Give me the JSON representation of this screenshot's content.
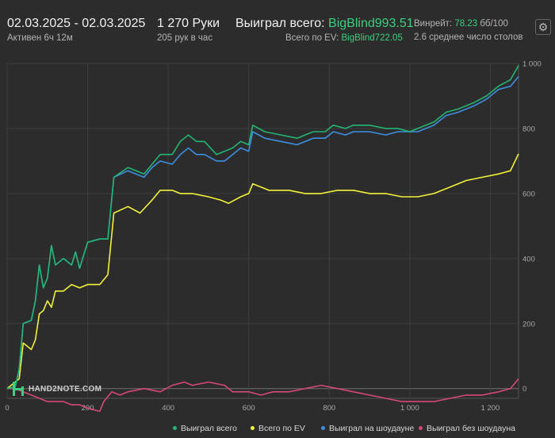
{
  "header": {
    "date_range": "02.03.2025 - 02.03.2025",
    "active_time": "Активен 6ч 12м",
    "hands": "1 270 Руки",
    "hands_per_hour": "205 рук в час",
    "won_total_label": "Выиграл всего:",
    "won_total_value": "BigBlind993.51",
    "ev_label": "Всего по EV:",
    "ev_value": "BigBlind722.05",
    "winrate_label": "Винрейт:",
    "winrate_value": "78.23",
    "winrate_unit": "бб/100",
    "tables": "2.6 среднее число столов",
    "gear_icon": "gear-icon"
  },
  "logo": {
    "text": "HAND2NOTE.COM"
  },
  "colors": {
    "background": "#2c2c2c",
    "accent_green": "#3ccf7f",
    "won_total": "#22b573",
    "ev": "#f2f23a",
    "showdown": "#3d8fe0",
    "non_showdown": "#d6477a",
    "zero_line": "#707070"
  },
  "chart_data": {
    "type": "line",
    "xlim": [
      0,
      1270
    ],
    "ylim": [
      -30,
      1000
    ],
    "x_ticks": [
      0,
      200,
      400,
      600,
      800,
      1000,
      1200
    ],
    "x_tick_labels": [
      "0",
      "200",
      "400",
      "600",
      "800",
      "1 000",
      "1 200"
    ],
    "y_ticks": [
      0,
      200,
      400,
      600,
      800,
      1000
    ],
    "y_tick_labels": [
      "0",
      "200",
      "400",
      "600",
      "800",
      "1 000"
    ],
    "grid": true,
    "legend_position": "bottom-right",
    "series": [
      {
        "name": "Выиграл всего",
        "color": "#22b573",
        "points": [
          [
            0,
            0
          ],
          [
            20,
            5
          ],
          [
            30,
            60
          ],
          [
            40,
            200
          ],
          [
            60,
            210
          ],
          [
            70,
            270
          ],
          [
            80,
            380
          ],
          [
            90,
            310
          ],
          [
            100,
            340
          ],
          [
            110,
            440
          ],
          [
            120,
            380
          ],
          [
            140,
            400
          ],
          [
            160,
            380
          ],
          [
            170,
            420
          ],
          [
            180,
            370
          ],
          [
            200,
            450
          ],
          [
            230,
            460
          ],
          [
            250,
            460
          ],
          [
            265,
            650
          ],
          [
            300,
            680
          ],
          [
            340,
            660
          ],
          [
            360,
            690
          ],
          [
            380,
            720
          ],
          [
            410,
            720
          ],
          [
            430,
            760
          ],
          [
            450,
            780
          ],
          [
            470,
            760
          ],
          [
            490,
            760
          ],
          [
            520,
            720
          ],
          [
            540,
            730
          ],
          [
            560,
            740
          ],
          [
            580,
            760
          ],
          [
            600,
            750
          ],
          [
            610,
            810
          ],
          [
            640,
            790
          ],
          [
            680,
            780
          ],
          [
            720,
            770
          ],
          [
            760,
            790
          ],
          [
            790,
            790
          ],
          [
            810,
            810
          ],
          [
            840,
            800
          ],
          [
            860,
            810
          ],
          [
            900,
            810
          ],
          [
            940,
            800
          ],
          [
            970,
            800
          ],
          [
            1000,
            790
          ],
          [
            1020,
            800
          ],
          [
            1060,
            820
          ],
          [
            1090,
            850
          ],
          [
            1120,
            860
          ],
          [
            1160,
            880
          ],
          [
            1190,
            900
          ],
          [
            1220,
            930
          ],
          [
            1250,
            950
          ],
          [
            1270,
            993.51
          ]
        ]
      },
      {
        "name": "Всего по EV",
        "color": "#f2f23a",
        "points": [
          [
            0,
            0
          ],
          [
            30,
            30
          ],
          [
            40,
            140
          ],
          [
            60,
            120
          ],
          [
            70,
            150
          ],
          [
            80,
            230
          ],
          [
            90,
            240
          ],
          [
            100,
            270
          ],
          [
            110,
            250
          ],
          [
            120,
            300
          ],
          [
            140,
            300
          ],
          [
            160,
            320
          ],
          [
            180,
            310
          ],
          [
            200,
            320
          ],
          [
            230,
            320
          ],
          [
            250,
            350
          ],
          [
            265,
            540
          ],
          [
            300,
            560
          ],
          [
            330,
            540
          ],
          [
            360,
            580
          ],
          [
            380,
            610
          ],
          [
            410,
            610
          ],
          [
            430,
            600
          ],
          [
            460,
            600
          ],
          [
            500,
            590
          ],
          [
            530,
            580
          ],
          [
            550,
            570
          ],
          [
            580,
            590
          ],
          [
            600,
            600
          ],
          [
            610,
            630
          ],
          [
            650,
            610
          ],
          [
            700,
            610
          ],
          [
            740,
            600
          ],
          [
            780,
            600
          ],
          [
            820,
            610
          ],
          [
            860,
            610
          ],
          [
            900,
            600
          ],
          [
            940,
            600
          ],
          [
            980,
            590
          ],
          [
            1020,
            590
          ],
          [
            1060,
            600
          ],
          [
            1100,
            620
          ],
          [
            1140,
            640
          ],
          [
            1180,
            650
          ],
          [
            1220,
            660
          ],
          [
            1250,
            670
          ],
          [
            1270,
            722.05
          ]
        ]
      },
      {
        "name": "Выиграл на шоудауне",
        "color": "#3d8fe0",
        "points": [
          [
            0,
            0
          ],
          [
            20,
            5
          ],
          [
            30,
            60
          ],
          [
            40,
            200
          ],
          [
            60,
            210
          ],
          [
            70,
            270
          ],
          [
            80,
            380
          ],
          [
            90,
            310
          ],
          [
            100,
            340
          ],
          [
            110,
            440
          ],
          [
            120,
            380
          ],
          [
            140,
            400
          ],
          [
            160,
            380
          ],
          [
            170,
            420
          ],
          [
            180,
            370
          ],
          [
            200,
            450
          ],
          [
            230,
            460
          ],
          [
            250,
            460
          ],
          [
            265,
            650
          ],
          [
            300,
            670
          ],
          [
            340,
            650
          ],
          [
            360,
            680
          ],
          [
            380,
            700
          ],
          [
            410,
            690
          ],
          [
            430,
            720
          ],
          [
            450,
            740
          ],
          [
            470,
            720
          ],
          [
            490,
            720
          ],
          [
            520,
            700
          ],
          [
            540,
            700
          ],
          [
            560,
            720
          ],
          [
            580,
            740
          ],
          [
            600,
            730
          ],
          [
            610,
            790
          ],
          [
            640,
            770
          ],
          [
            680,
            760
          ],
          [
            720,
            750
          ],
          [
            760,
            770
          ],
          [
            790,
            770
          ],
          [
            810,
            790
          ],
          [
            840,
            780
          ],
          [
            860,
            790
          ],
          [
            900,
            790
          ],
          [
            940,
            780
          ],
          [
            970,
            790
          ],
          [
            1000,
            790
          ],
          [
            1020,
            790
          ],
          [
            1060,
            810
          ],
          [
            1090,
            840
          ],
          [
            1120,
            850
          ],
          [
            1160,
            870
          ],
          [
            1190,
            890
          ],
          [
            1220,
            920
          ],
          [
            1250,
            930
          ],
          [
            1270,
            960
          ]
        ]
      },
      {
        "name": "Выиграл без шоудауна",
        "color": "#d6477a",
        "points": [
          [
            0,
            0
          ],
          [
            20,
            0
          ],
          [
            40,
            -10
          ],
          [
            60,
            -20
          ],
          [
            80,
            -30
          ],
          [
            100,
            -40
          ],
          [
            120,
            -40
          ],
          [
            140,
            -40
          ],
          [
            160,
            -50
          ],
          [
            180,
            -50
          ],
          [
            200,
            -60
          ],
          [
            230,
            -70
          ],
          [
            240,
            -40
          ],
          [
            260,
            -10
          ],
          [
            280,
            -20
          ],
          [
            300,
            -10
          ],
          [
            340,
            0
          ],
          [
            380,
            -10
          ],
          [
            410,
            10
          ],
          [
            440,
            20
          ],
          [
            460,
            10
          ],
          [
            500,
            20
          ],
          [
            540,
            10
          ],
          [
            560,
            -10
          ],
          [
            600,
            -10
          ],
          [
            630,
            -20
          ],
          [
            660,
            -10
          ],
          [
            700,
            -10
          ],
          [
            740,
            0
          ],
          [
            780,
            10
          ],
          [
            820,
            0
          ],
          [
            860,
            -10
          ],
          [
            900,
            -20
          ],
          [
            940,
            -30
          ],
          [
            980,
            -40
          ],
          [
            1020,
            -40
          ],
          [
            1060,
            -40
          ],
          [
            1100,
            -30
          ],
          [
            1140,
            -20
          ],
          [
            1180,
            -20
          ],
          [
            1220,
            -10
          ],
          [
            1250,
            0
          ],
          [
            1270,
            30
          ]
        ]
      }
    ]
  }
}
